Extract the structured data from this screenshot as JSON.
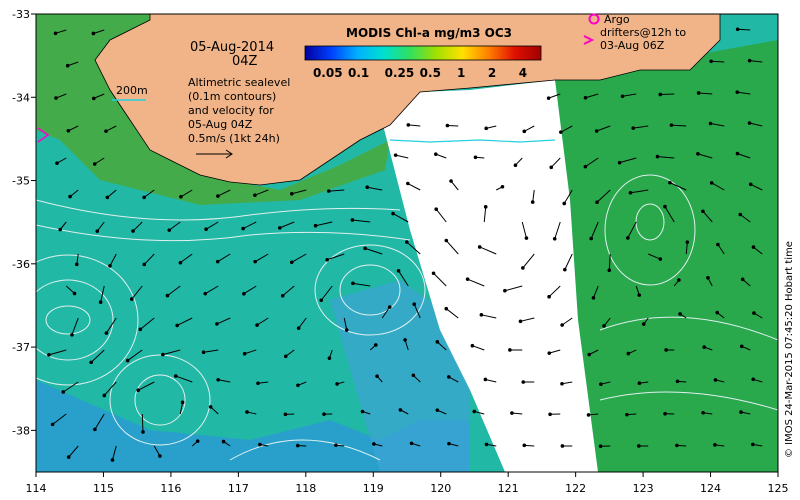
{
  "map": {
    "lon_range": [
      114,
      125
    ],
    "lat_range": [
      -38.5,
      -33
    ],
    "lon_ticks": [
      "114",
      "115",
      "116",
      "117",
      "118",
      "119",
      "120",
      "121",
      "122",
      "123",
      "124",
      "125"
    ],
    "lat_ticks": [
      "-33",
      "-34",
      "-35",
      "-36",
      "-37",
      "-38"
    ],
    "colors": {
      "land": "#f0b488",
      "ocean_teal": "#22b8a6",
      "ocean_blue": "#2a9ad4",
      "ocean_green": "#2aa84c",
      "coast_green": "#4aa83a",
      "no_data": "#ffffff",
      "contour": "#e0f0f0",
      "isobath": "#22d0e0",
      "arrow": "#000000",
      "argo_marker": "#ff00c8"
    }
  },
  "annotations": {
    "date": "05-Aug-2014",
    "time": "04Z",
    "isobath_label": "200m",
    "description_lines": [
      "Altimetric sealevel",
      "(0.1m contours)",
      "and velocity for",
      "05-Aug 04Z",
      "0.5m/s (1kt 24h)"
    ],
    "argo_lines": [
      "Argo",
      "drifters@12h to",
      "03-Aug 06Z"
    ],
    "credit": "© IMOS 24-Mar-2015 07:45:20 Hobart time"
  },
  "colorbar": {
    "title": "MODIS Chl-a mg/m3 OC3",
    "tick_labels": [
      "0.05",
      "0.1",
      "0.25",
      "0.5",
      "1",
      "2",
      "4"
    ],
    "scale": "log",
    "colors": [
      "#0000a0",
      "#0040ff",
      "#00b0ff",
      "#00e0d0",
      "#30e060",
      "#a0e000",
      "#ffe000",
      "#ff8000",
      "#e01000",
      "#a00000"
    ]
  }
}
